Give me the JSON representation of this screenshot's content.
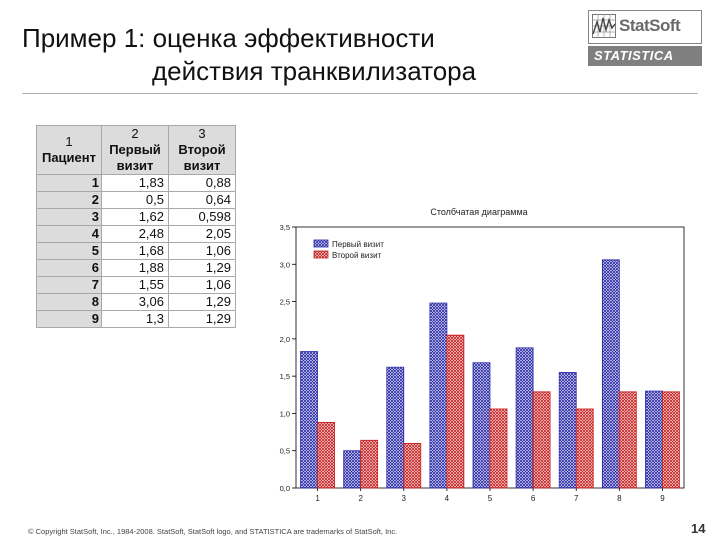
{
  "slide": {
    "title_line1": "Пример 1: оценка эффективности",
    "title_line2": "действия транквилизатора",
    "footer": "© Copyright StatSoft, Inc., 1984-2008. StatSoft, StatSoft logo, and STATISTICA are trademarks of StatSoft, Inc.",
    "page_number": "14"
  },
  "logo": {
    "brand": "StatSoft",
    "product": "STATISTICA",
    "brand_color": "#6a6a6a",
    "bar_color": "#7f7f7f"
  },
  "table": {
    "columns": [
      {
        "num": "1",
        "label_line1": "Пациент",
        "label_line2": ""
      },
      {
        "num": "2",
        "label_line1": "Первый",
        "label_line2": "визит"
      },
      {
        "num": "3",
        "label_line1": "Второй",
        "label_line2": "визит"
      }
    ],
    "rows": [
      {
        "id": "1",
        "first": "1,83",
        "second": "0,88"
      },
      {
        "id": "2",
        "first": "0,5",
        "second": "0,64"
      },
      {
        "id": "3",
        "first": "1,62",
        "second": "0,598"
      },
      {
        "id": "4",
        "first": "2,48",
        "second": "2,05"
      },
      {
        "id": "5",
        "first": "1,68",
        "second": "1,06"
      },
      {
        "id": "6",
        "first": "1,88",
        "second": "1,29"
      },
      {
        "id": "7",
        "first": "1,55",
        "second": "1,06"
      },
      {
        "id": "8",
        "first": "3,06",
        "second": "1,29"
      },
      {
        "id": "9",
        "first": "1,3",
        "second": "1,29"
      }
    ]
  },
  "chart_data": {
    "type": "bar",
    "title": "Столбчатая диаграмма",
    "categories": [
      "1",
      "2",
      "3",
      "4",
      "5",
      "6",
      "7",
      "8",
      "9"
    ],
    "series": [
      {
        "name": "Первый визит",
        "values": [
          1.83,
          0.5,
          1.62,
          2.48,
          1.68,
          1.88,
          1.55,
          3.06,
          1.3
        ],
        "color": "#2a2aa8"
      },
      {
        "name": "Второй визит",
        "values": [
          0.88,
          0.64,
          0.598,
          2.05,
          1.06,
          1.29,
          1.06,
          1.29,
          1.29
        ],
        "color": "#c82020"
      }
    ],
    "ylim": [
      0,
      3.5
    ],
    "yticks": [
      "0,0",
      "0,5",
      "1,0",
      "1,5",
      "2,0",
      "2,5",
      "3,0",
      "3,5"
    ],
    "grid": false,
    "legend_position": "top-left",
    "xlabel": "",
    "ylabel": ""
  }
}
